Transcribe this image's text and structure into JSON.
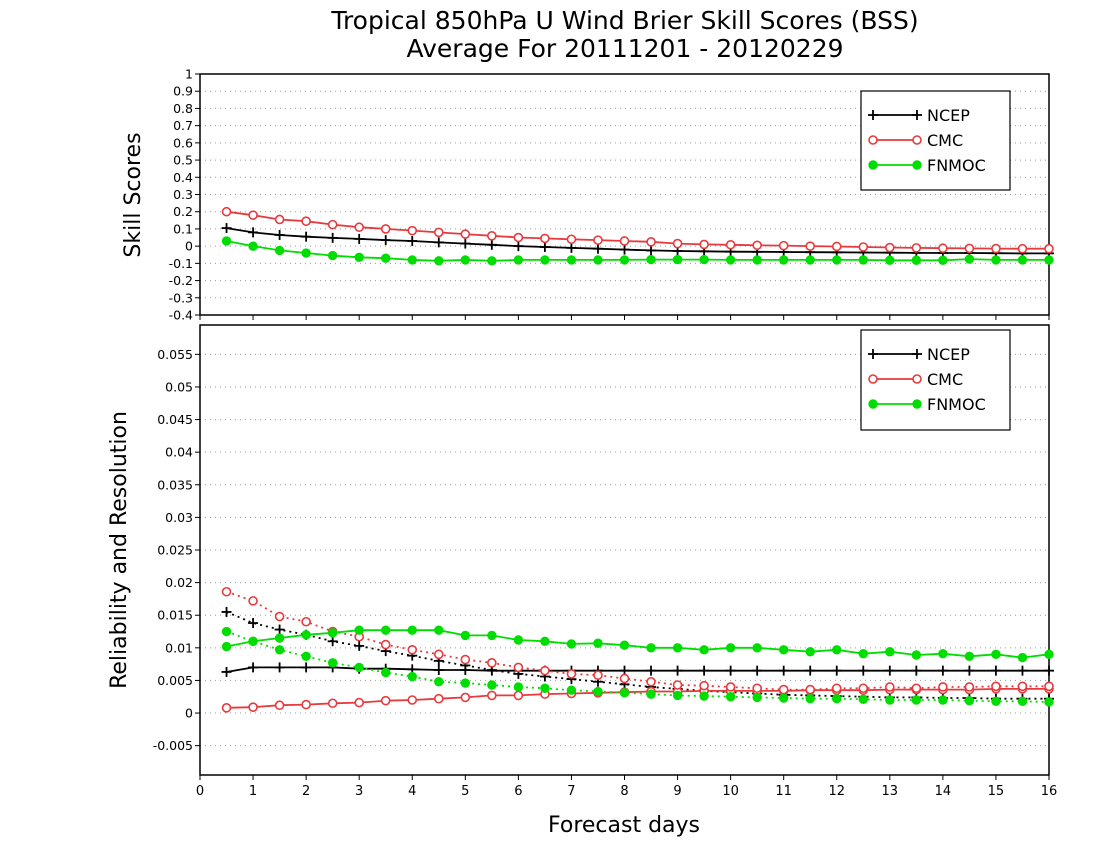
{
  "title_line1": "Tropical 850hPa U Wind Brier Skill Scores (BSS)",
  "title_line2": "Average For 20111201 - 20120229",
  "xlabel": "Forecast days",
  "colors": {
    "NCEP": "#000000",
    "CMC": "#e8393c",
    "FNMOC": "#00dd00",
    "grid": "#9a9a9a"
  },
  "chart_data": [
    {
      "type": "line",
      "panel": "top",
      "ylabel": "Skill Scores",
      "ylim": [
        -0.4,
        1
      ],
      "yticks": [
        -0.4,
        -0.3,
        -0.2,
        -0.1,
        0,
        0.1,
        0.2,
        0.3,
        0.4,
        0.5,
        0.6,
        0.7,
        0.8,
        0.9,
        1
      ],
      "ytick_labels": [
        "-0.4",
        "-0.3",
        "-0.2",
        "-0.1",
        "0",
        "0.1",
        "0.2",
        "0.3",
        "0.4",
        "0.5",
        "0.6",
        "0.7",
        "0.8",
        "0.9",
        "1"
      ],
      "xlim": [
        0,
        16
      ],
      "xticks": [
        0,
        1,
        2,
        3,
        4,
        5,
        6,
        7,
        8,
        9,
        10,
        11,
        12,
        13,
        14,
        15,
        16
      ],
      "x": [
        0.5,
        1,
        1.5,
        2,
        2.5,
        3,
        3.5,
        4,
        4.5,
        5,
        5.5,
        6,
        6.5,
        7,
        7.5,
        8,
        8.5,
        9,
        9.5,
        10,
        10.5,
        11,
        11.5,
        12,
        12.5,
        13,
        13.5,
        14,
        14.5,
        15,
        15.5,
        16
      ],
      "grid": true,
      "legend_position": "top-right",
      "series": [
        {
          "name": "NCEP",
          "style": "solid",
          "marker": "plus",
          "values": [
            0.105,
            0.08,
            0.065,
            0.055,
            0.048,
            0.042,
            0.035,
            0.03,
            0.022,
            0.015,
            0.008,
            0.0,
            -0.005,
            -0.01,
            -0.015,
            -0.02,
            -0.025,
            -0.028,
            -0.03,
            -0.032,
            -0.033,
            -0.034,
            -0.035,
            -0.036,
            -0.037,
            -0.038,
            -0.039,
            -0.04,
            -0.04,
            -0.041,
            -0.042,
            -0.042
          ]
        },
        {
          "name": "CMC",
          "style": "solid",
          "marker": "open-circle",
          "values": [
            0.2,
            0.18,
            0.155,
            0.145,
            0.125,
            0.11,
            0.1,
            0.09,
            0.08,
            0.07,
            0.06,
            0.05,
            0.045,
            0.04,
            0.035,
            0.03,
            0.025,
            0.015,
            0.01,
            0.008,
            0.005,
            0.003,
            0.0,
            -0.002,
            -0.005,
            -0.008,
            -0.01,
            -0.012,
            -0.013,
            -0.014,
            -0.015,
            -0.015
          ]
        },
        {
          "name": "FNMOC",
          "style": "solid",
          "marker": "filled-circle",
          "values": [
            0.03,
            0.0,
            -0.025,
            -0.04,
            -0.055,
            -0.065,
            -0.07,
            -0.08,
            -0.085,
            -0.08,
            -0.085,
            -0.08,
            -0.08,
            -0.08,
            -0.08,
            -0.08,
            -0.078,
            -0.078,
            -0.078,
            -0.08,
            -0.08,
            -0.08,
            -0.08,
            -0.08,
            -0.08,
            -0.082,
            -0.082,
            -0.082,
            -0.075,
            -0.08,
            -0.08,
            -0.08
          ]
        }
      ]
    },
    {
      "type": "line",
      "panel": "bottom",
      "ylabel": "Reliability and Resolution",
      "ylim": [
        -0.0095,
        0.0595
      ],
      "yticks": [
        -0.005,
        0,
        0.005,
        0.01,
        0.015,
        0.02,
        0.025,
        0.03,
        0.035,
        0.04,
        0.045,
        0.05,
        0.055
      ],
      "ytick_labels": [
        "-0.005",
        "0",
        "0.005",
        "0.01",
        "0.015",
        "0.02",
        "0.025",
        "0.03",
        "0.035",
        "0.04",
        "0.045",
        "0.05",
        "0.055"
      ],
      "xlim": [
        0,
        16
      ],
      "xticks": [
        0,
        1,
        2,
        3,
        4,
        5,
        6,
        7,
        8,
        9,
        10,
        11,
        12,
        13,
        14,
        15,
        16
      ],
      "x": [
        0.5,
        1,
        1.5,
        2,
        2.5,
        3,
        3.5,
        4,
        4.5,
        5,
        5.5,
        6,
        6.5,
        7,
        7.5,
        8,
        8.5,
        9,
        9.5,
        10,
        10.5,
        11,
        11.5,
        12,
        12.5,
        13,
        13.5,
        14,
        14.5,
        15,
        15.5,
        16
      ],
      "grid": true,
      "legend_position": "top-right",
      "series": [
        {
          "name": "NCEP",
          "style": "solid",
          "marker": "plus",
          "quantity": "resolution",
          "values": [
            0.0063,
            0.007,
            0.007,
            0.007,
            0.007,
            0.0068,
            0.0068,
            0.0067,
            0.0066,
            0.0066,
            0.0065,
            0.0065,
            0.0065,
            0.0065,
            0.0065,
            0.0065,
            0.0065,
            0.0065,
            0.0065,
            0.0065,
            0.0065,
            0.0065,
            0.0065,
            0.0065,
            0.0065,
            0.0065,
            0.0065,
            0.0065,
            0.0065,
            0.0065,
            0.0065,
            0.0065
          ]
        },
        {
          "name": "NCEP",
          "style": "dotted",
          "marker": "plus",
          "quantity": "reliability",
          "values": [
            0.0155,
            0.0138,
            0.0128,
            0.012,
            0.011,
            0.0103,
            0.0095,
            0.0088,
            0.008,
            0.0073,
            0.0066,
            0.006,
            0.0056,
            0.0052,
            0.0048,
            0.0044,
            0.004,
            0.0037,
            0.0034,
            0.0032,
            0.003,
            0.0028,
            0.0027,
            0.0026,
            0.0025,
            0.0024,
            0.0024,
            0.0023,
            0.0023,
            0.0022,
            0.0022,
            0.0022
          ]
        },
        {
          "name": "CMC",
          "style": "solid",
          "marker": "open-circle",
          "quantity": "resolution",
          "values": [
            0.0008,
            0.0009,
            0.0012,
            0.0013,
            0.0015,
            0.0016,
            0.0019,
            0.002,
            0.0022,
            0.0024,
            0.0027,
            0.0027,
            0.0029,
            0.003,
            0.0031,
            0.0032,
            0.0033,
            0.0033,
            0.0034,
            0.0034,
            0.0034,
            0.0034,
            0.0035,
            0.0035,
            0.0035,
            0.0036,
            0.0036,
            0.0036,
            0.0036,
            0.0037,
            0.0037,
            0.0037
          ]
        },
        {
          "name": "CMC",
          "style": "dotted",
          "marker": "open-circle",
          "quantity": "reliability",
          "values": [
            0.0186,
            0.0172,
            0.0148,
            0.014,
            0.0125,
            0.0117,
            0.0105,
            0.0097,
            0.009,
            0.0082,
            0.0077,
            0.007,
            0.0065,
            0.006,
            0.0058,
            0.0053,
            0.0048,
            0.0043,
            0.0042,
            0.004,
            0.0038,
            0.0036,
            0.0036,
            0.0038,
            0.0038,
            0.004,
            0.0038,
            0.004,
            0.004,
            0.0041,
            0.0041,
            0.0041
          ]
        },
        {
          "name": "FNMOC",
          "style": "solid",
          "marker": "filled-circle",
          "quantity": "resolution",
          "values": [
            0.0102,
            0.011,
            0.0115,
            0.012,
            0.0123,
            0.0127,
            0.0127,
            0.0127,
            0.0127,
            0.0119,
            0.0119,
            0.0112,
            0.011,
            0.0106,
            0.0107,
            0.0104,
            0.01,
            0.01,
            0.0097,
            0.01,
            0.01,
            0.0097,
            0.0094,
            0.0097,
            0.0091,
            0.0094,
            0.0089,
            0.0091,
            0.0087,
            0.009,
            0.0085,
            0.009
          ]
        },
        {
          "name": "FNMOC",
          "style": "dotted",
          "marker": "filled-circle",
          "quantity": "reliability",
          "values": [
            0.0125,
            0.011,
            0.0097,
            0.0087,
            0.0077,
            0.007,
            0.0062,
            0.0056,
            0.0048,
            0.0046,
            0.0043,
            0.004,
            0.0038,
            0.0035,
            0.0033,
            0.0031,
            0.0029,
            0.0027,
            0.0026,
            0.0025,
            0.0024,
            0.0023,
            0.0022,
            0.0022,
            0.0021,
            0.002,
            0.002,
            0.002,
            0.0019,
            0.0018,
            0.0018,
            0.0017
          ]
        }
      ]
    }
  ]
}
